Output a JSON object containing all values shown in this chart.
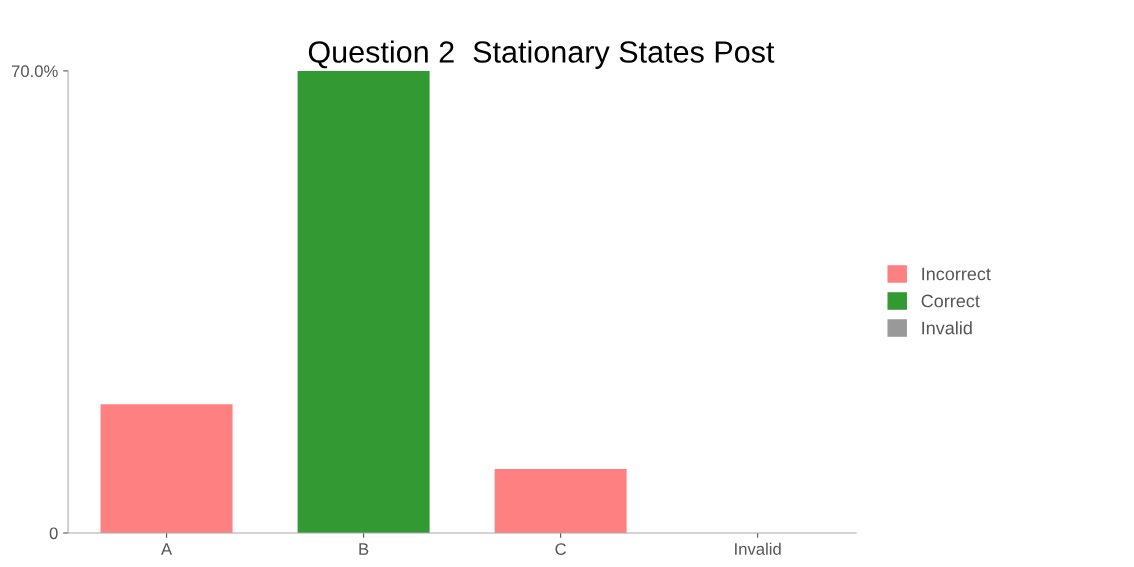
{
  "chart_data": {
    "type": "bar",
    "title": "Question 2  Stationary States Post",
    "categories": [
      "A",
      "B",
      "C",
      "Invalid"
    ],
    "series": [
      {
        "name": "Incorrect",
        "color": "#ff8080",
        "values": [
          19.5,
          null,
          9.7,
          null
        ]
      },
      {
        "name": "Correct",
        "color": "#339933",
        "values": [
          null,
          70,
          null,
          null
        ]
      },
      {
        "name": "Invalid",
        "color": "#999999",
        "values": [
          null,
          null,
          null,
          0
        ]
      }
    ],
    "ylim": [
      0,
      70
    ],
    "yticks": [
      {
        "value": 0,
        "label": "0"
      },
      {
        "value": 70,
        "label": "70.0%"
      }
    ],
    "grid": false,
    "legend": "right"
  }
}
